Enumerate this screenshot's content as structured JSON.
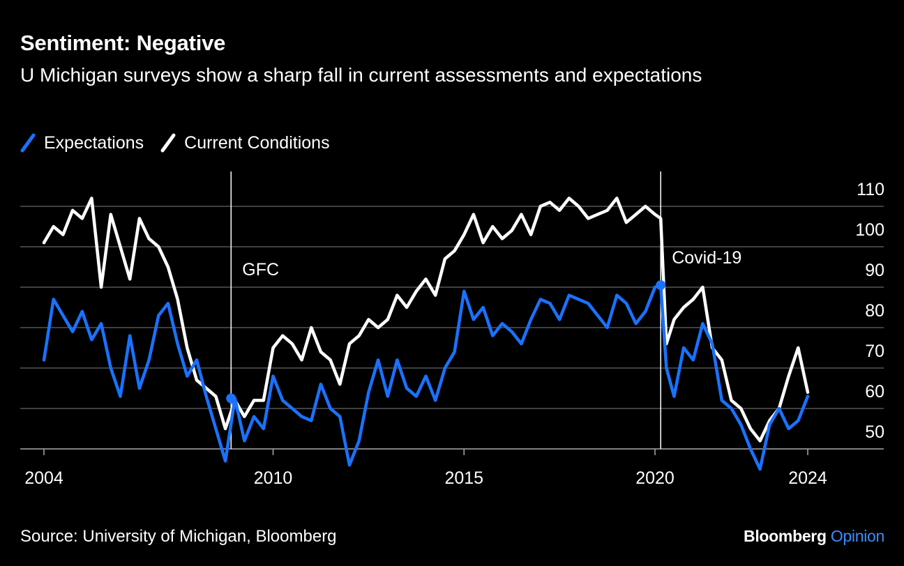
{
  "title": "Sentiment: Negative",
  "subtitle": "U Michigan surveys show a sharp fall in current assessments and expectations",
  "source": "Source: University of Michigan, Bloomberg",
  "brand": {
    "name": "Bloomberg",
    "product": "Opinion"
  },
  "colors": {
    "expectations": "#1a72ff",
    "current": "#ffffff",
    "background": "#000000",
    "grid": "#555555"
  },
  "chart_data": {
    "type": "line",
    "x_tick_labels": [
      "2004",
      "2010",
      "2015",
      "2020",
      "2024"
    ],
    "x_ticks": [
      2004,
      2010,
      2015,
      2020,
      2024
    ],
    "xlim": [
      2004,
      2024
    ],
    "y_tick_labels": [
      "50",
      "60",
      "70",
      "80",
      "90",
      "100",
      "110"
    ],
    "y_ticks": [
      50,
      60,
      70,
      80,
      90,
      100,
      110
    ],
    "ylim": [
      45,
      115
    ],
    "y_axis_side": "right",
    "legend_position": "top-left",
    "grid": true,
    "annotations": [
      {
        "label": "GFC",
        "x": 2008.9,
        "series": "Expectations",
        "y": 62.5
      },
      {
        "label": "Covid-19",
        "x": 2020.15,
        "series": "Expectations",
        "y": 90.5
      }
    ],
    "series": [
      {
        "name": "Expectations",
        "x": [
          2004.0,
          2004.25,
          2004.5,
          2004.75,
          2005.0,
          2005.25,
          2005.5,
          2005.75,
          2006.0,
          2006.25,
          2006.5,
          2006.75,
          2007.0,
          2007.25,
          2007.5,
          2007.75,
          2008.0,
          2008.25,
          2008.5,
          2008.75,
          2009.0,
          2009.25,
          2009.5,
          2009.75,
          2010.0,
          2010.25,
          2010.5,
          2010.75,
          2011.0,
          2011.25,
          2011.5,
          2011.75,
          2012.0,
          2012.25,
          2012.5,
          2012.75,
          2013.0,
          2013.25,
          2013.5,
          2013.75,
          2014.0,
          2014.25,
          2014.5,
          2014.75,
          2015.0,
          2015.25,
          2015.5,
          2015.75,
          2016.0,
          2016.25,
          2016.5,
          2016.75,
          2017.0,
          2017.25,
          2017.5,
          2017.75,
          2018.0,
          2018.25,
          2018.5,
          2018.75,
          2019.0,
          2019.25,
          2019.5,
          2019.75,
          2020.0,
          2020.15,
          2020.3,
          2020.5,
          2020.75,
          2021.0,
          2021.25,
          2021.5,
          2021.75,
          2022.0,
          2022.25,
          2022.5,
          2022.75,
          2023.0,
          2023.25,
          2023.5,
          2023.75,
          2024.0
        ],
        "values": [
          72,
          87,
          83,
          79,
          84,
          77,
          81,
          70,
          63,
          78,
          65,
          72,
          83,
          86,
          76,
          68,
          72,
          63,
          55,
          47,
          62.5,
          52,
          58,
          55,
          68,
          62,
          60,
          58,
          57,
          66,
          60,
          58,
          46,
          52,
          64,
          72,
          63,
          72,
          65,
          63,
          68,
          62,
          70,
          74,
          89,
          82,
          85,
          78,
          81,
          79,
          76,
          82,
          87,
          86,
          82,
          88,
          87,
          86,
          83,
          80,
          88,
          86,
          81,
          84,
          90,
          90.5,
          70,
          63,
          75,
          72,
          81,
          76,
          62,
          60,
          56,
          50,
          45,
          56,
          60,
          55,
          57,
          63
        ]
      },
      {
        "name": "Current Conditions",
        "x": [
          2004.0,
          2004.25,
          2004.5,
          2004.75,
          2005.0,
          2005.25,
          2005.5,
          2005.75,
          2006.0,
          2006.25,
          2006.5,
          2006.75,
          2007.0,
          2007.25,
          2007.5,
          2007.75,
          2008.0,
          2008.25,
          2008.5,
          2008.75,
          2009.0,
          2009.25,
          2009.5,
          2009.75,
          2010.0,
          2010.25,
          2010.5,
          2010.75,
          2011.0,
          2011.25,
          2011.5,
          2011.75,
          2012.0,
          2012.25,
          2012.5,
          2012.75,
          2013.0,
          2013.25,
          2013.5,
          2013.75,
          2014.0,
          2014.25,
          2014.5,
          2014.75,
          2015.0,
          2015.25,
          2015.5,
          2015.75,
          2016.0,
          2016.25,
          2016.5,
          2016.75,
          2017.0,
          2017.25,
          2017.5,
          2017.75,
          2018.0,
          2018.25,
          2018.5,
          2018.75,
          2019.0,
          2019.25,
          2019.5,
          2019.75,
          2020.0,
          2020.15,
          2020.3,
          2020.5,
          2020.75,
          2021.0,
          2021.25,
          2021.5,
          2021.75,
          2022.0,
          2022.25,
          2022.5,
          2022.75,
          2023.0,
          2023.25,
          2023.5,
          2023.75,
          2024.0
        ],
        "values": [
          101,
          105,
          103,
          109,
          107,
          112,
          90,
          108,
          100,
          92,
          107,
          102,
          100,
          95,
          87,
          75,
          67,
          65,
          63,
          55,
          62,
          58,
          62,
          62,
          75,
          78,
          76,
          72,
          80,
          74,
          72,
          66,
          76,
          78,
          82,
          80,
          82,
          88,
          85,
          89,
          92,
          88,
          97,
          99,
          103,
          108,
          101,
          105,
          102,
          104,
          108,
          103,
          110,
          111,
          109,
          112,
          110,
          107,
          108,
          109,
          112,
          106,
          108,
          110,
          108,
          107,
          76,
          82,
          85,
          87,
          90,
          75,
          72,
          62,
          60,
          55,
          52,
          57,
          60,
          68,
          75,
          64
        ]
      }
    ]
  }
}
